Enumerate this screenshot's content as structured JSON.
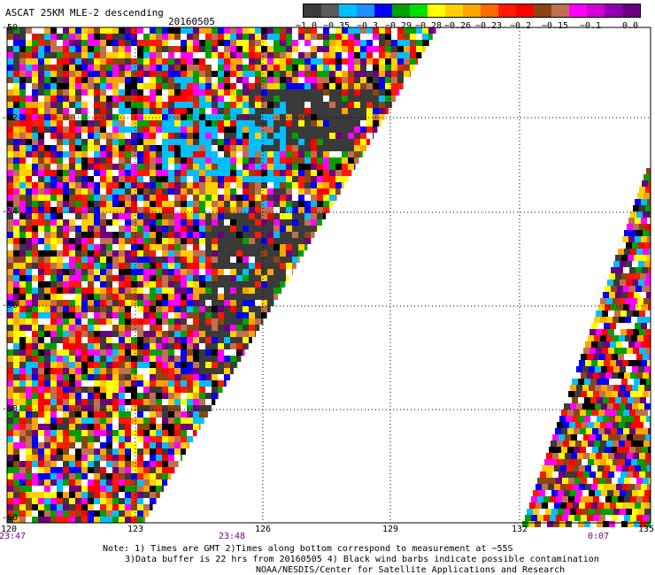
{
  "header": {
    "title": "ASCAT 25KM MLE-2 descending",
    "date": "20160505"
  },
  "colorbar": {
    "colors": [
      "#3a3a3a",
      "#5a5a5a",
      "#00bfff",
      "#1e90ff",
      "#0000ff",
      "#00a000",
      "#00e000",
      "#ffff00",
      "#ffd000",
      "#ffa500",
      "#ff6a00",
      "#ff1a00",
      "#ff0000",
      "#8b4513",
      "#c07050",
      "#ff00ff",
      "#d000d0",
      "#9000b0",
      "#6a0080"
    ],
    "labels": [
      "−1.0",
      "−0.35",
      "−0.3",
      "−0.29",
      "−0.28",
      "−0.26",
      "−0.23",
      "−0.2",
      "−0.15",
      "−0.1",
      "0.0"
    ]
  },
  "axes": {
    "x_ticks": [
      "120",
      "123",
      "126",
      "129",
      "132",
      "135"
    ],
    "y_ticks": [
      "-50",
      "-52",
      "-54",
      "-56",
      "-58",
      "-60"
    ],
    "times": [
      "23:47",
      "23:48",
      "0:07"
    ]
  },
  "notes": {
    "line1": "Note: 1) Times are GMT 2)Times along bottom correspond to measurement at −55S",
    "line2": "3)Data buffer is 22 hrs from 20160505 4) Black wind barbs indicate possible contamination",
    "line3": "NOAA/NESDIS/Center for Satellite Applications and Research"
  }
}
